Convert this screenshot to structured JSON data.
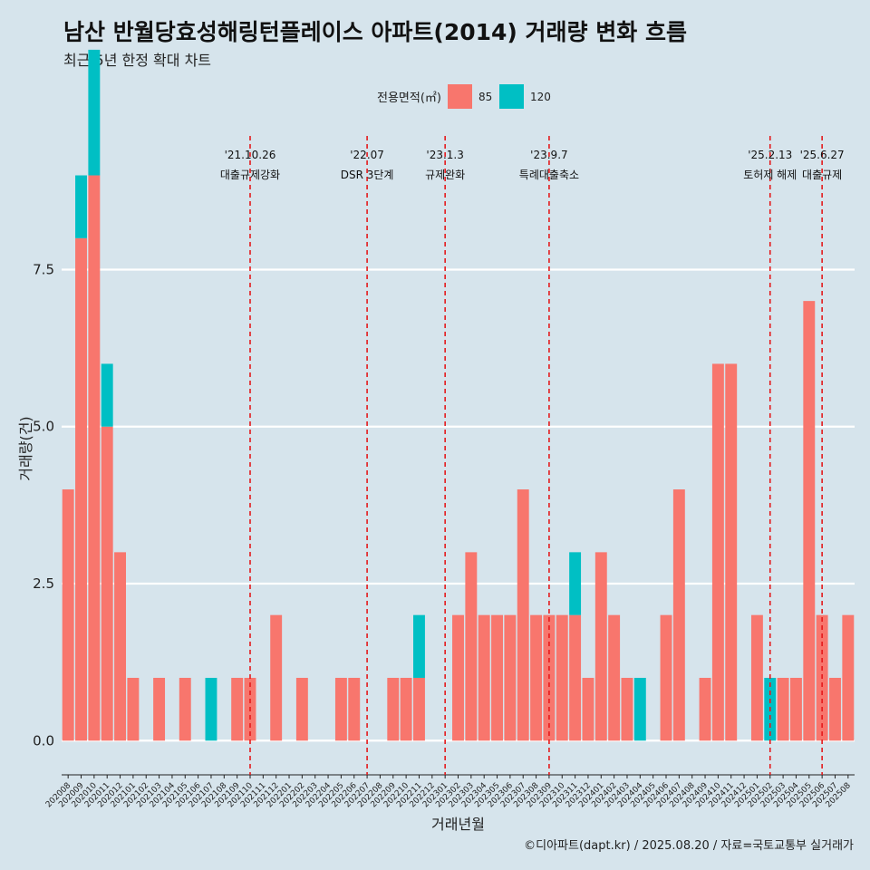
{
  "title": "남산 반월당효성해링턴플레이스 아파트(2014) 거래량 변화 흐름",
  "subtitle": "최근 5년 한정 확대 차트",
  "caption": "©디아파트(dapt.kr) / 2025.08.20 / 자료=국토교통부 실거래가",
  "colors": {
    "85": "#f8766d",
    "120": "#00bfc4",
    "background": "#d6e4ec",
    "vline": "#e41a1c",
    "grid": "#ffffff"
  },
  "chart_data": {
    "type": "bar",
    "xlabel": "거래년월",
    "ylabel": "거래량(건)",
    "ylim": [
      -0.4,
      9.7
    ],
    "yticks": [
      0.0,
      2.5,
      5.0,
      7.5
    ],
    "ytick_labels": [
      "0.0",
      "2.5",
      "5.0",
      "7.5"
    ],
    "grid": true,
    "legend": {
      "title": "전용면적(㎡)",
      "position": "top",
      "entries": [
        "85",
        "120"
      ]
    },
    "categories": [
      "202008",
      "202009",
      "202010",
      "202011",
      "202012",
      "202101",
      "202102",
      "202103",
      "202104",
      "202105",
      "202106",
      "202107",
      "202108",
      "202109",
      "202110",
      "202111",
      "202112",
      "202201",
      "202202",
      "202203",
      "202204",
      "202205",
      "202206",
      "202207",
      "202208",
      "202209",
      "202210",
      "202211",
      "202212",
      "202301",
      "202302",
      "202303",
      "202304",
      "202305",
      "202306",
      "202307",
      "202308",
      "202309",
      "202310",
      "202311",
      "202312",
      "202401",
      "202402",
      "202403",
      "202404",
      "202405",
      "202406",
      "202407",
      "202408",
      "202409",
      "202410",
      "202411",
      "202412",
      "202501",
      "202502",
      "202503",
      "202504",
      "202505",
      "202506",
      "202507",
      "202508"
    ],
    "series": [
      {
        "name": "85",
        "values": [
          4,
          8,
          9,
          5,
          3,
          1,
          0,
          1,
          0,
          1,
          0,
          0,
          0,
          1,
          1,
          0,
          2,
          0,
          1,
          0,
          0,
          1,
          1,
          0,
          0,
          1,
          1,
          1,
          0,
          0,
          2,
          3,
          2,
          2,
          2,
          4,
          2,
          2,
          2,
          2,
          1,
          3,
          2,
          1,
          0,
          0,
          2,
          4,
          0,
          1,
          6,
          6,
          0,
          2,
          0,
          1,
          1,
          7,
          2,
          1,
          2
        ]
      },
      {
        "name": "120",
        "values": [
          0,
          1,
          2,
          1,
          0,
          0,
          0,
          0,
          0,
          0,
          0,
          1,
          0,
          0,
          0,
          0,
          0,
          0,
          0,
          0,
          0,
          0,
          0,
          0,
          0,
          0,
          0,
          1,
          0,
          0,
          0,
          0,
          0,
          0,
          0,
          0,
          0,
          0,
          0,
          1,
          0,
          0,
          0,
          0,
          1,
          0,
          0,
          0,
          0,
          0,
          0,
          0,
          0,
          0,
          1,
          0,
          0,
          0,
          0,
          0,
          0
        ]
      }
    ],
    "annotations": [
      {
        "month": "202110",
        "date": "'21.10.26",
        "label": "대출규제강화"
      },
      {
        "month": "202207",
        "date": "'22.07",
        "label": "DSR 3단계"
      },
      {
        "month": "202301",
        "date": "'23.1.3",
        "label": "규제완화"
      },
      {
        "month": "202309",
        "date": "'23.9.7",
        "label": "특례대출축소"
      },
      {
        "month": "202502",
        "date": "'25.2.13",
        "label": "토허제 해제"
      },
      {
        "month": "202506",
        "date": "'25.6.27",
        "label": "대출규제"
      }
    ]
  }
}
